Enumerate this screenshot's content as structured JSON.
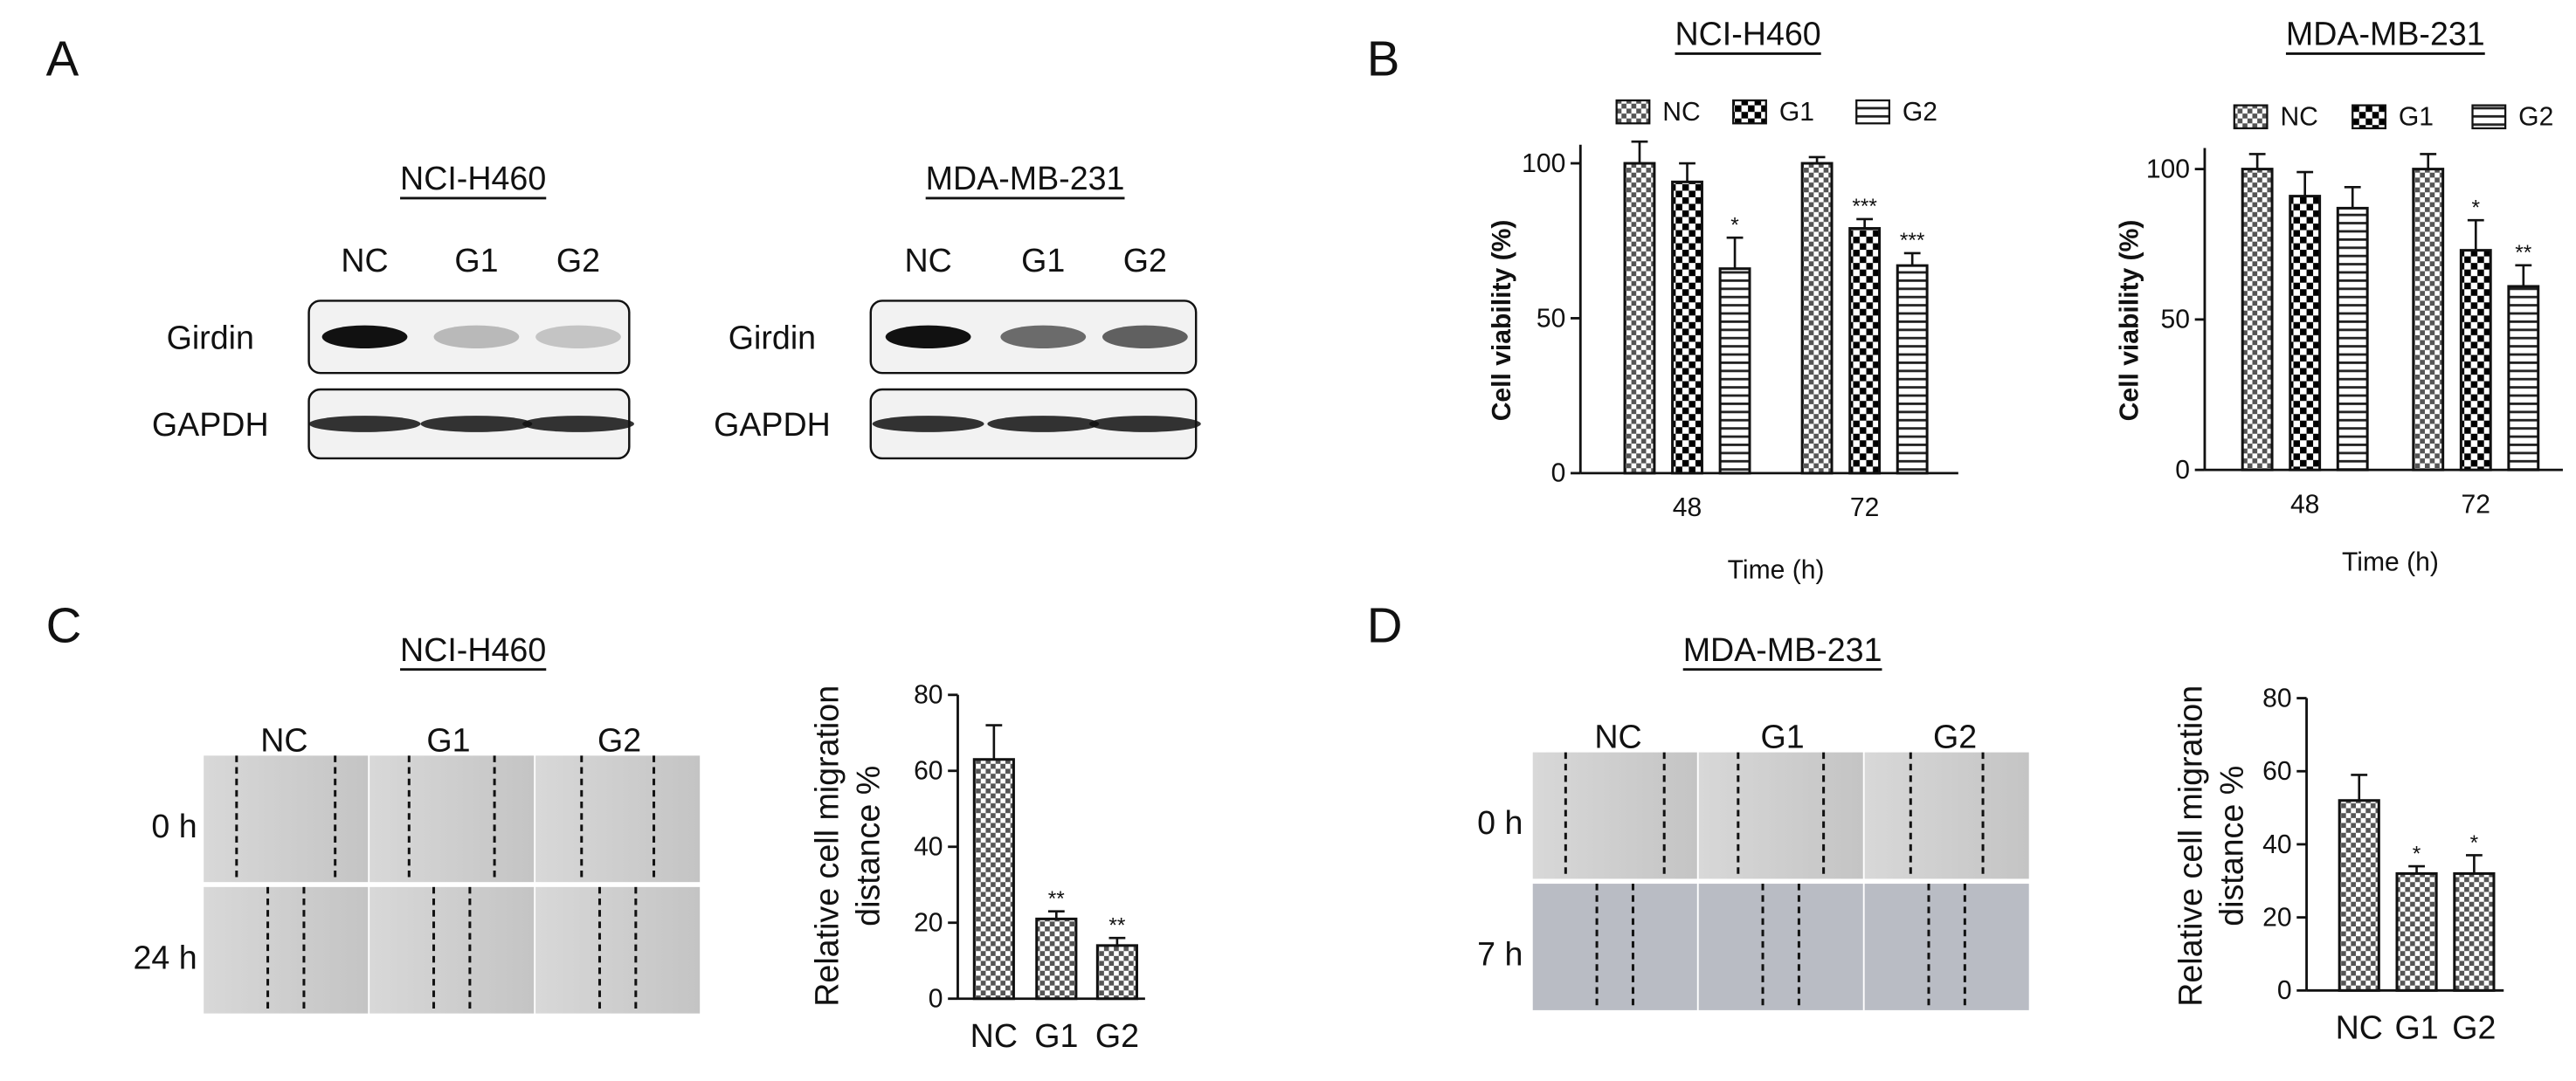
{
  "panel_labels": [
    "A",
    "B",
    "C",
    "D"
  ],
  "blots": [
    {
      "title": "NCI-H460",
      "lanes": [
        "NC",
        "G1",
        "G2"
      ],
      "rows": [
        "Girdin",
        "GAPDH"
      ]
    },
    {
      "title": "MDA-MB-231",
      "lanes": [
        "NC",
        "G1",
        "G2"
      ],
      "rows": [
        "Girdin",
        "GAPDH"
      ]
    }
  ],
  "micrographs": [
    {
      "title": "NCI-H460",
      "columns": [
        "NC",
        "G1",
        "G2"
      ],
      "rows": [
        "0 h",
        "24 h"
      ]
    },
    {
      "title": "MDA-MB-231",
      "columns": [
        "NC",
        "G1",
        "G2"
      ],
      "rows": [
        "0 h",
        "7 h"
      ]
    }
  ],
  "chart_data": [
    {
      "type": "bar",
      "title": "NCI-H460",
      "x_label": "Time (h)",
      "y_label": [
        "Cell viability (%)"
      ],
      "categories": [
        "48",
        "72"
      ],
      "series": [
        {
          "name": "NC",
          "pattern": "checker",
          "values": [
            100,
            100
          ],
          "errors": [
            7,
            2
          ],
          "significance": [
            null,
            null
          ]
        },
        {
          "name": "G1",
          "pattern": "bold-checker",
          "values": [
            94,
            79
          ],
          "errors": [
            6,
            3
          ],
          "significance": [
            null,
            "***"
          ]
        },
        {
          "name": "G2",
          "pattern": "horizontal-lines",
          "values": [
            66,
            67
          ],
          "errors": [
            10,
            4
          ],
          "significance": [
            "*",
            "***"
          ]
        }
      ],
      "ylim": [
        0,
        106
      ],
      "yticks": [
        0,
        50,
        100
      ]
    },
    {
      "type": "bar",
      "title": "MDA-MB-231",
      "x_label": "Time (h)",
      "y_label": [
        "Cell viability (%)"
      ],
      "categories": [
        "48",
        "72"
      ],
      "series": [
        {
          "name": "NC",
          "pattern": "checker",
          "values": [
            100,
            100
          ],
          "errors": [
            5,
            5
          ],
          "significance": [
            null,
            null
          ]
        },
        {
          "name": "G1",
          "pattern": "bold-checker",
          "values": [
            91,
            73
          ],
          "errors": [
            8,
            10
          ],
          "significance": [
            null,
            "*"
          ]
        },
        {
          "name": "G2",
          "pattern": "horizontal-lines",
          "values": [
            87,
            61
          ],
          "errors": [
            7,
            7
          ],
          "significance": [
            null,
            "**"
          ]
        }
      ],
      "ylim": [
        0,
        107
      ],
      "yticks": [
        0,
        50,
        100
      ]
    },
    {
      "type": "bar",
      "y_label": [
        "Relative cell migration",
        "distance %"
      ],
      "categories": [
        "NC",
        "G1",
        "G2"
      ],
      "pattern": "checker",
      "values": [
        63,
        21,
        14
      ],
      "errors": [
        9,
        2,
        2
      ],
      "significance": [
        null,
        "**",
        "**"
      ],
      "ylim": [
        0,
        80
      ],
      "yticks": [
        0,
        20,
        40,
        60,
        80
      ]
    },
    {
      "type": "bar",
      "y_label": [
        "Relative cell migration",
        "distance %"
      ],
      "categories": [
        "NC",
        "G1",
        "G2"
      ],
      "pattern": "checker",
      "values": [
        52,
        32,
        32
      ],
      "errors": [
        7,
        2,
        5
      ],
      "significance": [
        null,
        "*",
        "*"
      ],
      "ylim": [
        0,
        80
      ],
      "yticks": [
        0,
        20,
        40,
        60,
        80
      ]
    }
  ]
}
